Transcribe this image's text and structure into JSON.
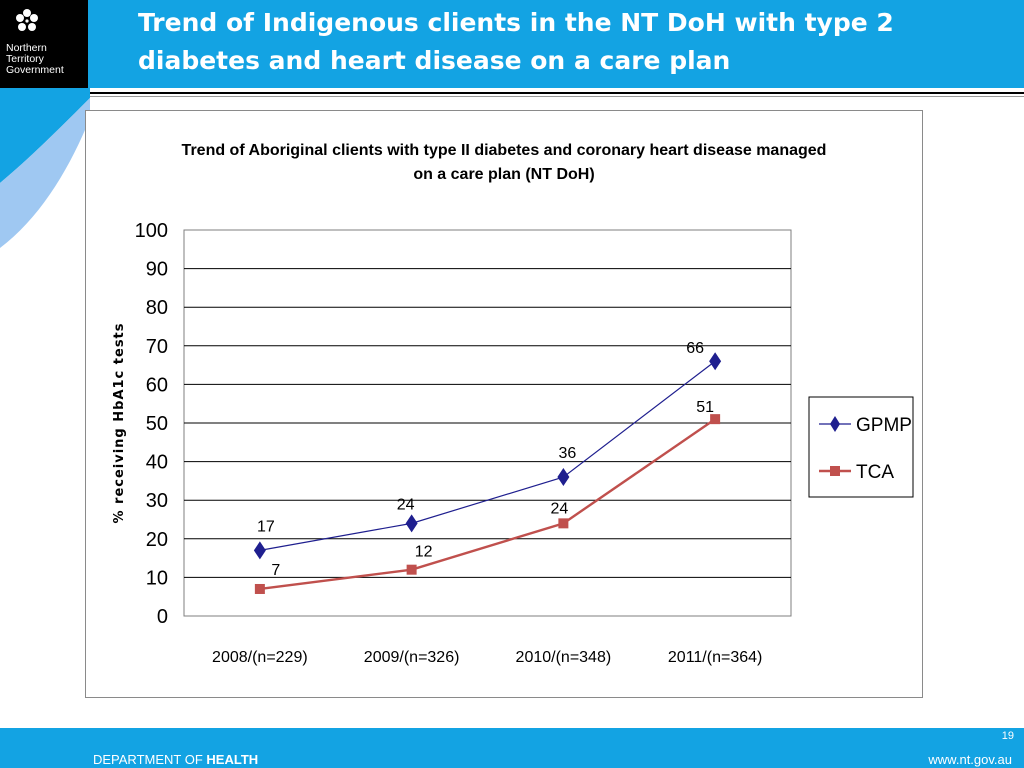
{
  "slide": {
    "title": "Trend of Indigenous clients in the NT DoH with type 2\ndiabetes and heart disease on a care plan",
    "logo_text": "Northern\nTerritory\nGovernment",
    "footer_dept_prefix": "DEPARTMENT OF ",
    "footer_dept_bold": "HEALTH",
    "footer_url": "www.nt.gov.au",
    "page_number": "19"
  },
  "colors": {
    "header_blue": "#13a3e3",
    "gpmp": "#1f1f8f",
    "tca": "#c0504d"
  },
  "chart_data": {
    "type": "line",
    "title": "Trend of Aboriginal clients with type II diabetes and coronary heart disease managed\non a care plan (NT DoH)",
    "xlabel": "",
    "ylabel": "% receiving HbA1c tests",
    "categories": [
      "2008/(n=229)",
      "2009/(n=326)",
      "2010/(n=348)",
      "2011/(n=364)"
    ],
    "ylim": [
      0,
      100
    ],
    "yticks": [
      0,
      10,
      20,
      30,
      40,
      50,
      60,
      70,
      80,
      90,
      100
    ],
    "grid": true,
    "legend_position": "right",
    "series": [
      {
        "name": "GPMP",
        "values": [
          17,
          24,
          36,
          66
        ],
        "color": "#1f1f8f",
        "marker": "diamond"
      },
      {
        "name": "TCA",
        "values": [
          7,
          12,
          24,
          51
        ],
        "color": "#c0504d",
        "marker": "square"
      }
    ]
  }
}
